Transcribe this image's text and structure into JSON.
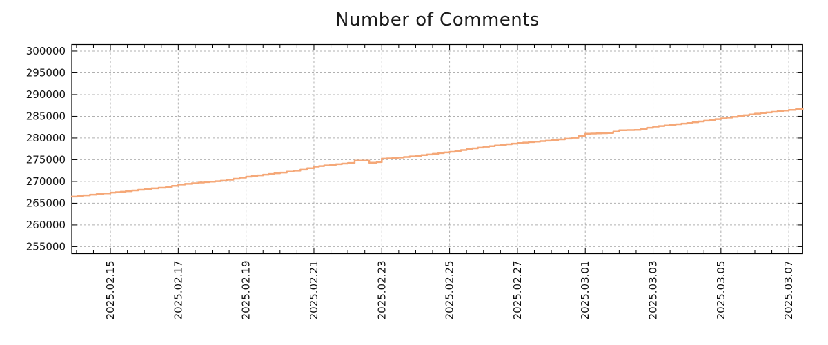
{
  "chart_data": {
    "type": "line",
    "title": "Number of Comments",
    "grid": true,
    "legend": "none",
    "x_axis": {
      "tick_labels": [
        "2025.02.15",
        "2025.02.17",
        "2025.02.19",
        "2025.02.21",
        "2025.02.23",
        "2025.02.25",
        "2025.02.27",
        "2025.03.01",
        "2025.03.03",
        "2025.03.05",
        "2025.03.07"
      ],
      "tick_days": [
        0,
        2,
        4,
        6,
        8,
        10,
        12,
        14,
        16,
        18,
        20
      ],
      "minor_tick_step_days": 0.5,
      "lim_days": [
        -1.14,
        20.41
      ]
    },
    "y_axis": {
      "ticks": [
        255000,
        260000,
        265000,
        270000,
        275000,
        280000,
        285000,
        290000,
        295000,
        300000
      ],
      "lim": [
        253400,
        301500
      ]
    },
    "series": [
      {
        "name": "comments",
        "color": "#f5a878",
        "points": [
          [
            -1.14,
            266510
          ],
          [
            -0.8,
            266790
          ],
          [
            -0.41,
            267100
          ],
          [
            0,
            267420
          ],
          [
            0.45,
            267740
          ],
          [
            1.0,
            268270
          ],
          [
            1.63,
            268700
          ],
          [
            2.0,
            269300
          ],
          [
            2.6,
            269750
          ],
          [
            3.25,
            270160
          ],
          [
            4.0,
            271100
          ],
          [
            4.5,
            271550
          ],
          [
            5.0,
            272030
          ],
          [
            5.6,
            272700
          ],
          [
            6.0,
            273400
          ],
          [
            6.3,
            273700
          ],
          [
            7.0,
            274250
          ],
          [
            7.2,
            274790
          ],
          [
            7.45,
            274790
          ],
          [
            7.63,
            274310
          ],
          [
            7.85,
            274450
          ],
          [
            8.0,
            275250
          ],
          [
            8.3,
            275350
          ],
          [
            9.0,
            275900
          ],
          [
            10.0,
            276820
          ],
          [
            11.0,
            277990
          ],
          [
            12.0,
            278840
          ],
          [
            13.0,
            279480
          ],
          [
            13.6,
            280050
          ],
          [
            14.0,
            280980
          ],
          [
            14.65,
            281150
          ],
          [
            15.0,
            281780
          ],
          [
            15.45,
            281850
          ],
          [
            16.0,
            282600
          ],
          [
            17.0,
            283450
          ],
          [
            18.0,
            284520
          ],
          [
            19.0,
            285600
          ],
          [
            20.0,
            286450
          ],
          [
            20.41,
            286800
          ]
        ]
      }
    ],
    "colors": {
      "grid": "#b0b0b0",
      "axis": "#000000",
      "title": "#1a1a1a",
      "background": "#ffffff"
    }
  }
}
